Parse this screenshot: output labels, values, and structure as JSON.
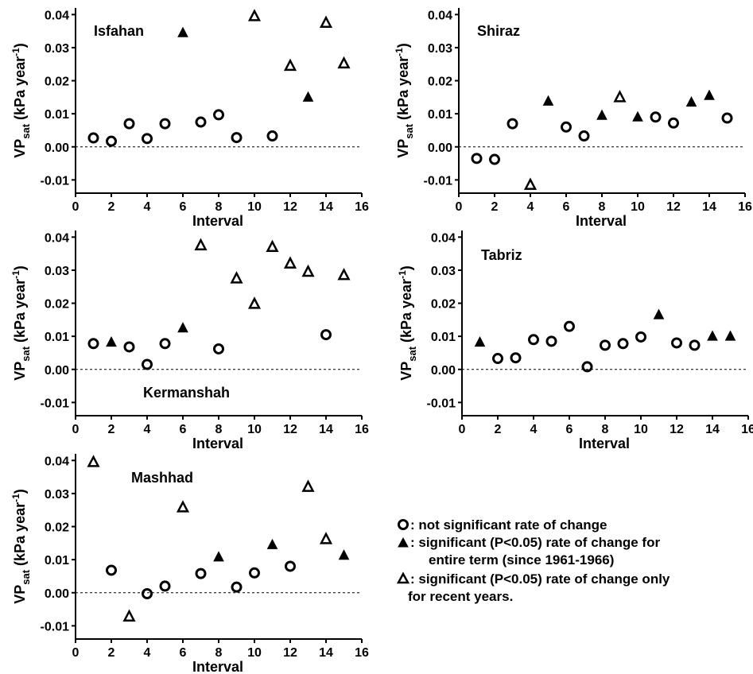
{
  "legend": [
    {
      "symbol": "open-circle",
      "text": ": not significant rate of change"
    },
    {
      "symbol": "filled-triangle",
      "text": ": significant (P<0.05) rate of change for",
      "text2": "entire term (since 1961-1966)"
    },
    {
      "symbol": "open-triangle",
      "text": ": significant (P<0.05) rate of change only",
      "text2": "for recent years."
    }
  ],
  "chart_data": [
    {
      "type": "scatter",
      "title": "Isfahan",
      "xlabel": "Interval",
      "ylabel_main": "VP",
      "ylabel_sub": "sat",
      "ylabel_unit": " (kPa year",
      "ylabel_exp": "-1",
      "ylabel_close": ")",
      "xlim": [
        0,
        16
      ],
      "ylim": [
        -0.014,
        0.042
      ],
      "xticks": [
        "0",
        "2",
        "4",
        "6",
        "8",
        "10",
        "12",
        "14",
        "16"
      ],
      "yticks": [
        "0.04",
        "0.03",
        "0.02",
        "0.01",
        "0.00",
        "-0.01"
      ],
      "series": [
        {
          "marker": "open-circle",
          "points": [
            [
              1,
              0.0027
            ],
            [
              2,
              0.0017
            ],
            [
              3,
              0.007
            ],
            [
              4,
              0.0025
            ],
            [
              5,
              0.007
            ],
            [
              7,
              0.0075
            ],
            [
              8,
              0.0097
            ],
            [
              9,
              0.0028
            ],
            [
              11,
              0.0033
            ]
          ]
        },
        {
          "marker": "filled-triangle",
          "points": [
            [
              6,
              0.0345
            ],
            [
              13,
              0.015
            ]
          ]
        },
        {
          "marker": "open-triangle",
          "points": [
            [
              10,
              0.0395
            ],
            [
              12,
              0.0245
            ],
            [
              14,
              0.0375
            ],
            [
              15,
              0.0252
            ]
          ]
        }
      ]
    },
    {
      "type": "scatter",
      "title": "Shiraz",
      "xlabel": "Interval",
      "ylabel_main": "VP",
      "ylabel_sub": "sat",
      "ylabel_unit": " (kPa year",
      "ylabel_exp": "-1",
      "ylabel_close": ")",
      "xlim": [
        0,
        16
      ],
      "ylim": [
        -0.014,
        0.042
      ],
      "xticks": [
        "0",
        "2",
        "4",
        "6",
        "8",
        "10",
        "12",
        "14",
        "16"
      ],
      "yticks": [
        "0.04",
        "0.03",
        "0.02",
        "0.01",
        "0.00",
        "-0.01"
      ],
      "series": [
        {
          "marker": "open-circle",
          "points": [
            [
              1,
              -0.0035
            ],
            [
              2,
              -0.0038
            ],
            [
              3,
              0.007
            ],
            [
              6,
              0.006
            ],
            [
              7,
              0.0033
            ],
            [
              11,
              0.009
            ],
            [
              12,
              0.0072
            ],
            [
              15,
              0.0087
            ]
          ]
        },
        {
          "marker": "filled-triangle",
          "points": [
            [
              5,
              0.0138
            ],
            [
              8,
              0.0095
            ],
            [
              10,
              0.009
            ],
            [
              13,
              0.0135
            ],
            [
              14,
              0.0155
            ]
          ]
        },
        {
          "marker": "open-triangle",
          "points": [
            [
              4,
              -0.0115
            ],
            [
              9,
              0.015
            ]
          ]
        }
      ]
    },
    {
      "type": "scatter",
      "title": "Kermanshah",
      "xlabel": "Interval",
      "ylabel_main": "VP",
      "ylabel_sub": "sat",
      "ylabel_unit": " (kPa year",
      "ylabel_exp": "-1",
      "ylabel_close": ")",
      "xlim": [
        0,
        16
      ],
      "ylim": [
        -0.014,
        0.042
      ],
      "xticks": [
        "0",
        "2",
        "4",
        "6",
        "8",
        "10",
        "12",
        "14",
        "16"
      ],
      "yticks": [
        "0.04",
        "0.03",
        "0.02",
        "0.01",
        "0.00",
        "-0.01"
      ],
      "series": [
        {
          "marker": "open-circle",
          "points": [
            [
              1,
              0.0078
            ],
            [
              3,
              0.0068
            ],
            [
              4,
              0.0015
            ],
            [
              5,
              0.0078
            ],
            [
              8,
              0.0062
            ],
            [
              14,
              0.0105
            ]
          ]
        },
        {
          "marker": "filled-triangle",
          "points": [
            [
              2,
              0.0082
            ],
            [
              6,
              0.0125
            ]
          ]
        },
        {
          "marker": "open-triangle",
          "points": [
            [
              7,
              0.0375
            ],
            [
              9,
              0.0275
            ],
            [
              10,
              0.0198
            ],
            [
              11,
              0.037
            ],
            [
              12,
              0.032
            ],
            [
              13,
              0.0295
            ],
            [
              15,
              0.0285
            ]
          ]
        }
      ]
    },
    {
      "type": "scatter",
      "title": "Tabriz",
      "xlabel": "Interval",
      "ylabel_main": "VP",
      "ylabel_sub": "sat",
      "ylabel_unit": " (kPa year",
      "ylabel_exp": "-1",
      "ylabel_close": ")",
      "xlim": [
        0,
        16
      ],
      "ylim": [
        -0.014,
        0.042
      ],
      "xticks": [
        "0",
        "2",
        "4",
        "6",
        "8",
        "10",
        "12",
        "14",
        "16"
      ],
      "yticks": [
        "0.04",
        "0.03",
        "0.02",
        "0.01",
        "0.00",
        "-0.01"
      ],
      "series": [
        {
          "marker": "open-circle",
          "points": [
            [
              2,
              0.0033
            ],
            [
              3,
              0.0035
            ],
            [
              4,
              0.009
            ],
            [
              5,
              0.0085
            ],
            [
              6,
              0.013
            ],
            [
              7,
              0.0008
            ],
            [
              8,
              0.0073
            ],
            [
              9,
              0.0078
            ],
            [
              10,
              0.0098
            ],
            [
              12,
              0.008
            ],
            [
              13,
              0.0073
            ]
          ]
        },
        {
          "marker": "filled-triangle",
          "points": [
            [
              1,
              0.0082
            ],
            [
              11,
              0.0165
            ],
            [
              14,
              0.01
            ],
            [
              15,
              0.01
            ]
          ]
        },
        {
          "marker": "open-triangle",
          "points": []
        }
      ]
    },
    {
      "type": "scatter",
      "title": "Mashhad",
      "xlabel": "Interval",
      "ylabel_main": "VP",
      "ylabel_sub": "sat",
      "ylabel_unit": " (kPa year",
      "ylabel_exp": "-1",
      "ylabel_close": ")",
      "xlim": [
        0,
        16
      ],
      "ylim": [
        -0.014,
        0.042
      ],
      "xticks": [
        "0",
        "2",
        "4",
        "6",
        "8",
        "10",
        "12",
        "14",
        "16"
      ],
      "yticks": [
        "0.04",
        "0.03",
        "0.02",
        "0.01",
        "0.00",
        "-0.01"
      ],
      "series": [
        {
          "marker": "open-circle",
          "points": [
            [
              2,
              0.0068
            ],
            [
              4,
              -0.0003
            ],
            [
              5,
              0.002
            ],
            [
              7,
              0.0058
            ],
            [
              9,
              0.0017
            ],
            [
              10,
              0.006
            ],
            [
              12,
              0.008
            ]
          ]
        },
        {
          "marker": "filled-triangle",
          "points": [
            [
              8,
              0.0108
            ],
            [
              11,
              0.0145
            ],
            [
              15,
              0.0113
            ]
          ]
        },
        {
          "marker": "open-triangle",
          "points": [
            [
              1,
              0.0395
            ],
            [
              3,
              -0.0072
            ],
            [
              6,
              0.0258
            ],
            [
              13,
              0.032
            ],
            [
              14,
              0.0162
            ]
          ]
        }
      ]
    }
  ]
}
